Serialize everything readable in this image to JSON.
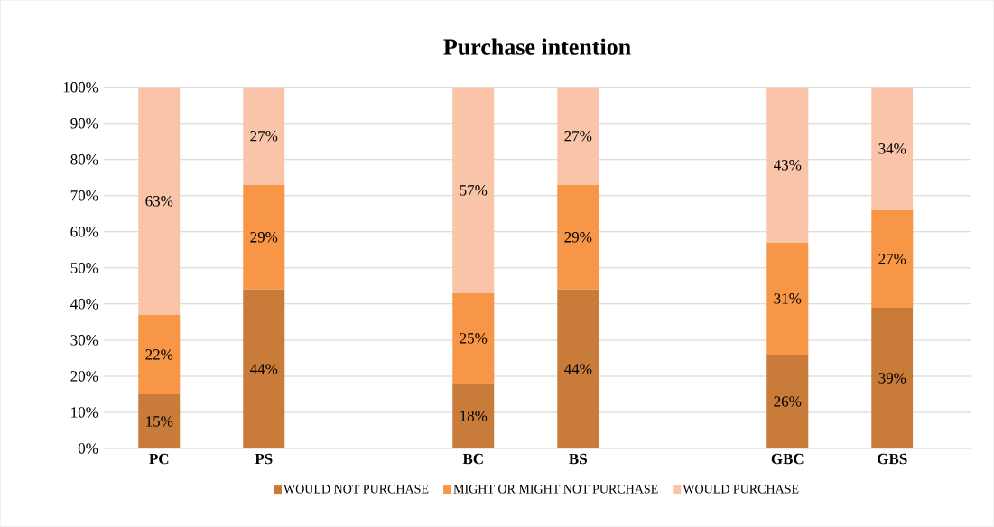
{
  "chart_data": {
    "type": "bar",
    "title": "Purchase intention",
    "stacked": true,
    "grid": "y",
    "legend": "bottom",
    "categories": [
      "PC",
      "PS",
      null,
      "BC",
      "BS",
      null,
      "GBC",
      "GBS"
    ],
    "ylim": [
      0,
      100
    ],
    "yticks": [
      {
        "value": 0,
        "label": "0%"
      },
      {
        "value": 10,
        "label": "10%"
      },
      {
        "value": 20,
        "label": "20%"
      },
      {
        "value": 30,
        "label": "30%"
      },
      {
        "value": 40,
        "label": "40%"
      },
      {
        "value": 50,
        "label": "50%"
      },
      {
        "value": 60,
        "label": "60%"
      },
      {
        "value": 70,
        "label": "70%"
      },
      {
        "value": 80,
        "label": "80%"
      },
      {
        "value": 90,
        "label": "90%"
      },
      {
        "value": 100,
        "label": "100%"
      }
    ],
    "series": [
      {
        "name": "WOULD NOT PURCHASE",
        "color": "#c97b3a",
        "values": [
          15,
          44,
          null,
          18,
          44,
          null,
          26,
          39
        ],
        "value_labels": [
          "15%",
          "44%",
          null,
          "18%",
          "44%",
          null,
          "26%",
          "39%"
        ]
      },
      {
        "name": "MIGHT OR MIGHT NOT PURCHASE",
        "color": "#f79646",
        "values": [
          22,
          29,
          null,
          25,
          29,
          null,
          31,
          27
        ],
        "value_labels": [
          "22%",
          "29%",
          null,
          "25%",
          "29%",
          null,
          "31%",
          "27%"
        ]
      },
      {
        "name": "WOULD PURCHASE",
        "color": "#fac4a8",
        "values": [
          63,
          27,
          null,
          57,
          27,
          null,
          43,
          34
        ],
        "value_labels": [
          "63%",
          "27%",
          null,
          "57%",
          "27%",
          null,
          "43%",
          "34%"
        ]
      }
    ]
  }
}
